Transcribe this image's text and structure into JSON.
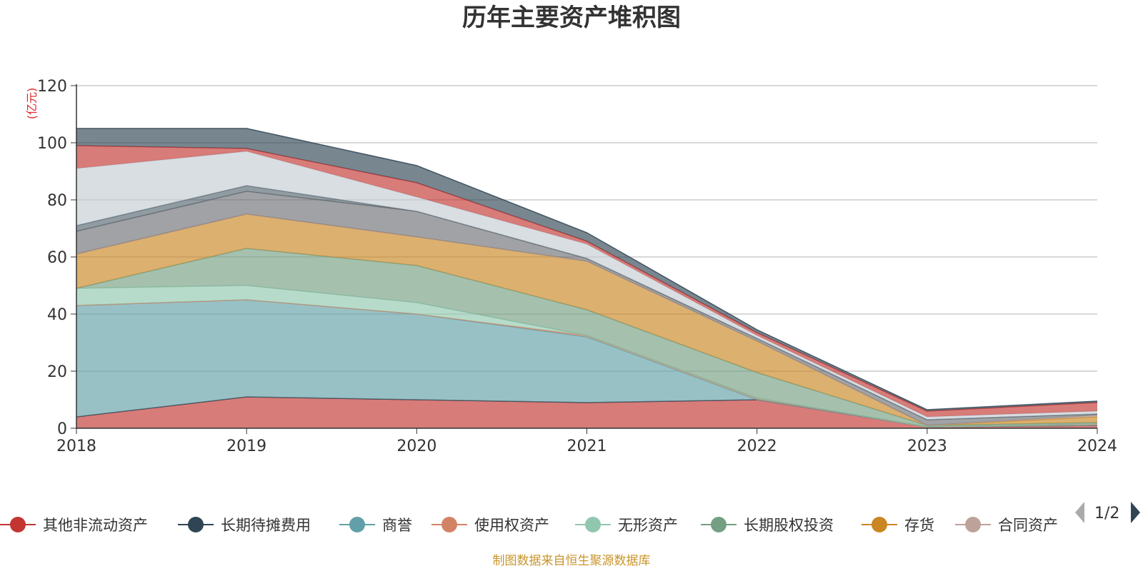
{
  "chart_data": {
    "type": "area",
    "stacked": true,
    "title": "历年主要资产堆积图",
    "unit_label": "(亿元)",
    "x": [
      "2018",
      "2019",
      "2020",
      "2021",
      "2022",
      "2023",
      "2024"
    ],
    "ylim": [
      0,
      120
    ],
    "yticks": [
      0,
      20,
      40,
      60,
      80,
      100,
      120
    ],
    "grid": true,
    "legend_position": "bottom",
    "series": [
      {
        "name": "其他非流动资产",
        "color": "#c23531",
        "values": [
          4,
          11,
          10,
          9,
          10,
          0.5,
          1
        ]
      },
      {
        "name": "长期待摊费用",
        "color": "#2f4554",
        "values": [
          0,
          0,
          0,
          0,
          0,
          0,
          0
        ]
      },
      {
        "name": "商誉",
        "color": "#61a0a8",
        "values": [
          39,
          34,
          30,
          23,
          0,
          0,
          0
        ]
      },
      {
        "name": "使用权资产",
        "color": "#d48265",
        "values": [
          0,
          0,
          0,
          0.5,
          0.5,
          0,
          0.5
        ]
      },
      {
        "name": "无形资产",
        "color": "#91c7ae",
        "values": [
          6,
          5,
          4,
          0,
          0,
          0,
          0
        ]
      },
      {
        "name": "长期股权投资",
        "color": "#749f83",
        "values": [
          0,
          13,
          13,
          9,
          9,
          0.5,
          0.5
        ]
      },
      {
        "name": "存货",
        "color": "#ca8622",
        "values": [
          12,
          12,
          10,
          17,
          11,
          0,
          2
        ]
      },
      {
        "name": "合同资产",
        "color": "#bda29a",
        "values": [
          0,
          0,
          0,
          0,
          0,
          0,
          0.5
        ]
      },
      {
        "name": "",
        "color": "#6e7074",
        "values": [
          8,
          8,
          9,
          1,
          1,
          2,
          0.5
        ]
      },
      {
        "name": "",
        "color": "#546570",
        "values": [
          2,
          2,
          0,
          0,
          0,
          0,
          0
        ]
      },
      {
        "name": "",
        "color": "#c4ccd3",
        "values": [
          20,
          12,
          5,
          5,
          1,
          1,
          1
        ]
      },
      {
        "name": "",
        "color": "#c23531",
        "values": [
          8,
          1,
          5,
          1,
          1,
          2,
          3
        ]
      },
      {
        "name": "",
        "color": "#2f4554",
        "values": [
          6,
          7,
          6,
          3,
          1,
          0.5,
          0.5
        ]
      }
    ]
  },
  "legend": {
    "page": "1/2"
  },
  "source": "制图数据来自恒生聚源数据库"
}
